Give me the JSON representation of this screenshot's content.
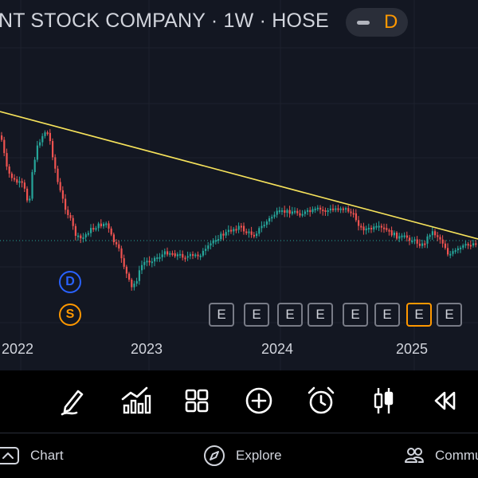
{
  "header": {
    "title": "NT STOCK COMPANY · 1W · HOSE",
    "badge_letter": "D"
  },
  "time_axis": [
    "2022",
    "2023",
    "2024",
    "2025"
  ],
  "markers": {
    "dividend": "D",
    "split": "S",
    "earnings": "E"
  },
  "toolbar": {
    "tools": [
      "draw-pen-icon",
      "indicators-icon",
      "templates-grid-icon",
      "add-circle-icon",
      "alarm-clock-icon",
      "candle-style-icon",
      "replay-rewind-icon"
    ]
  },
  "nav": {
    "chart": "Chart",
    "explore": "Explore",
    "community": "Commu"
  },
  "colors": {
    "up": "#26a69a",
    "down": "#ef5350",
    "trendline": "#f7e35b",
    "accent": "#ff9800",
    "dividend": "#2962ff"
  }
}
